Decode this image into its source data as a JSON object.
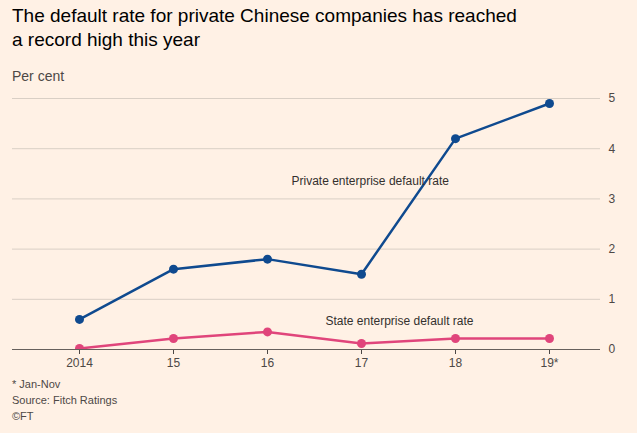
{
  "chart_data": {
    "type": "line",
    "title": "The default rate for private Chinese companies has reached a record high this year",
    "subtitle": "Per cent",
    "categories": [
      "2014",
      "15",
      "16",
      "17",
      "18",
      "19*"
    ],
    "series": [
      {
        "name": "Private enterprise default rate",
        "color": "#0f4a8f",
        "marker": "circle",
        "line_style": "solid",
        "values": [
          0.6,
          1.6,
          1.8,
          1.5,
          4.2,
          4.9
        ]
      },
      {
        "name": "State enterprise default rate",
        "color": "#e0457b",
        "marker": "circle",
        "line_style": "solid",
        "values": [
          0.02,
          0.22,
          0.35,
          0.12,
          0.22,
          0.22
        ]
      }
    ],
    "ylim": [
      0,
      5
    ],
    "yticks": [
      0,
      1,
      2,
      3,
      4,
      5
    ],
    "grid": true,
    "notes": [
      "* Jan-Nov",
      "Source: Fitch Ratings",
      "©FT"
    ]
  }
}
